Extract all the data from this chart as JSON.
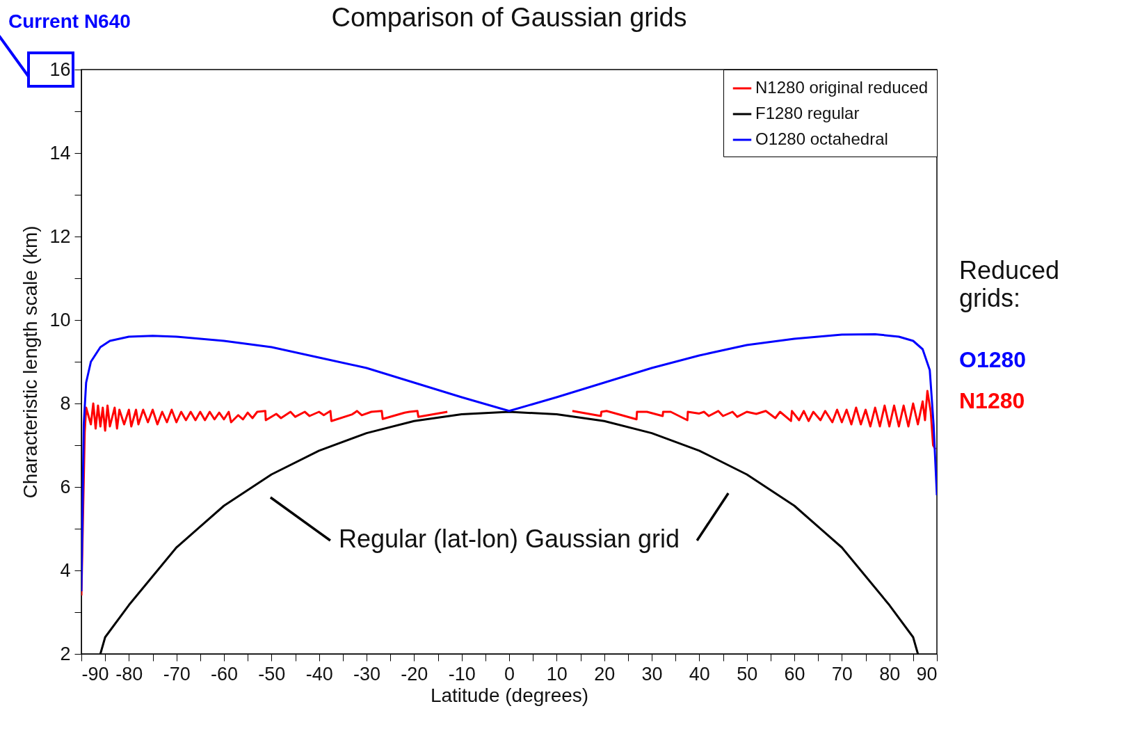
{
  "chart_data": {
    "type": "line",
    "title": "Comparison of Gaussian grids",
    "xlabel": "Latitude (degrees)",
    "ylabel": "Characteristic length scale (km)",
    "xlim": [
      -90,
      90
    ],
    "ylim": [
      2,
      16
    ],
    "xticks": [
      -90,
      {
        "value": -85,
        "label": null
      },
      -80,
      {
        "value": -75,
        "label": null
      },
      -70,
      {
        "value": -65,
        "label": null
      },
      -60,
      {
        "value": -55,
        "label": null
      },
      -50,
      {
        "value": -45,
        "label": null
      },
      -40,
      {
        "value": -35,
        "label": null
      },
      -30,
      {
        "value": -25,
        "label": null
      },
      -20,
      {
        "value": -15,
        "label": null
      },
      -10,
      {
        "value": -5,
        "label": null
      },
      0,
      {
        "value": 5,
        "label": null
      },
      10,
      {
        "value": 15,
        "label": null
      },
      20,
      {
        "value": 25,
        "label": null
      },
      30,
      {
        "value": 35,
        "label": null
      },
      40,
      {
        "value": 45,
        "label": null
      },
      50,
      {
        "value": 55,
        "label": null
      },
      60,
      {
        "value": 65,
        "label": null
      },
      70,
      {
        "value": 75,
        "label": null
      },
      80,
      {
        "value": 85,
        "label": null
      },
      90
    ],
    "yticks": [
      2,
      {
        "value": 3,
        "label": null
      },
      4,
      {
        "value": 5,
        "label": null
      },
      6,
      {
        "value": 7,
        "label": null
      },
      8,
      {
        "value": 9,
        "label": null
      },
      10,
      {
        "value": 11,
        "label": null
      },
      12,
      {
        "value": 13,
        "label": null
      },
      14,
      {
        "value": 15,
        "label": null
      },
      16
    ],
    "grid": false,
    "legend": "top right",
    "line_style": "solid",
    "marker": "none",
    "series": [
      {
        "name": "N1280 original reduced",
        "color": "#ff0000",
        "x": [
          -90,
          -89.3,
          -89,
          -88,
          -87.5,
          -87,
          -86.5,
          -86,
          -85.5,
          -85,
          -84.5,
          -84,
          -83,
          -82.5,
          -82,
          -81,
          -80,
          -79.5,
          -78.5,
          -78,
          -77,
          -76,
          -75,
          -74,
          -73,
          -72,
          -71,
          -70,
          -69,
          -68,
          -67,
          -66,
          -65,
          -64,
          -63,
          -62,
          -61,
          -60,
          -59,
          -58.5,
          -57,
          -56,
          -55,
          -54,
          -53,
          -51.3,
          -51.2,
          -49,
          -48,
          -46,
          -45,
          -43,
          -42,
          -40,
          -39,
          -37.6,
          -37.4,
          -33,
          -32,
          -31,
          -29,
          -26.8,
          -26.6,
          -22,
          -21,
          -19.3,
          -19.1,
          -13,
          0,
          13.3,
          19.3,
          19.4,
          20.5,
          26.8,
          26.9,
          29,
          32.3,
          32.4,
          34,
          37.5,
          37.6,
          40,
          41,
          42,
          44,
          45,
          47,
          48,
          50,
          52,
          54,
          56,
          57,
          59.3,
          59.5,
          61,
          62,
          63,
          64,
          65.5,
          66.5,
          68,
          69,
          70,
          71,
          72,
          73,
          74,
          75,
          76,
          77,
          78,
          79,
          80,
          81,
          82,
          83,
          84,
          85,
          86,
          87,
          87.5,
          88,
          88.7,
          89.2,
          89.7
        ],
        "values": [
          3.4,
          7.3,
          7.9,
          7.5,
          8.0,
          7.4,
          7.95,
          7.45,
          7.9,
          7.35,
          7.95,
          7.45,
          7.9,
          7.4,
          7.85,
          7.5,
          7.85,
          7.45,
          7.85,
          7.5,
          7.85,
          7.55,
          7.85,
          7.5,
          7.8,
          7.55,
          7.85,
          7.55,
          7.8,
          7.6,
          7.8,
          7.6,
          7.8,
          7.6,
          7.8,
          7.62,
          7.78,
          7.62,
          7.8,
          7.55,
          7.72,
          7.62,
          7.78,
          7.65,
          7.8,
          7.82,
          7.6,
          7.75,
          7.65,
          7.8,
          7.68,
          7.8,
          7.7,
          7.8,
          7.72,
          7.82,
          7.58,
          7.74,
          7.82,
          7.72,
          7.8,
          7.82,
          7.63,
          7.78,
          7.8,
          7.82,
          7.68,
          7.8,
          null,
          7.82,
          7.7,
          7.8,
          7.82,
          7.62,
          7.8,
          7.8,
          7.7,
          7.8,
          7.8,
          7.6,
          7.8,
          7.76,
          7.8,
          7.7,
          7.82,
          7.7,
          7.8,
          7.68,
          7.8,
          7.75,
          7.82,
          7.65,
          7.8,
          7.58,
          7.82,
          7.6,
          7.82,
          7.58,
          7.8,
          7.6,
          7.82,
          7.55,
          7.85,
          7.55,
          7.85,
          7.5,
          7.9,
          7.5,
          7.85,
          7.45,
          7.9,
          7.45,
          7.95,
          7.45,
          7.95,
          7.45,
          7.95,
          7.45,
          8.0,
          7.5,
          8.05,
          7.6,
          8.3,
          7.8,
          7.0,
          6.9
        ]
      },
      {
        "name": "F1280 regular",
        "color": "#000000",
        "x": [
          -86,
          -85,
          -80,
          -70,
          -60,
          -50,
          -40,
          -30,
          -20,
          -10,
          0,
          10,
          20,
          30,
          40,
          50,
          60,
          70,
          80,
          85,
          86
        ],
        "values": [
          2.0,
          2.4,
          3.17,
          4.55,
          5.55,
          6.3,
          6.87,
          7.29,
          7.58,
          7.74,
          7.8,
          7.74,
          7.58,
          7.29,
          6.87,
          6.3,
          5.55,
          4.55,
          3.17,
          2.4,
          2.0
        ]
      },
      {
        "name": "O1280 octahedral",
        "color": "#0000ff",
        "x": [
          -90,
          -89.5,
          -89,
          -88,
          -86,
          -84,
          -80,
          -75,
          -70,
          -60,
          -50,
          -40,
          -30,
          -20,
          -10,
          0,
          10,
          20,
          30,
          40,
          50,
          60,
          70,
          77,
          82,
          85,
          87,
          88.5,
          89.3,
          90
        ],
        "values": [
          3.5,
          7.5,
          8.5,
          9.0,
          9.35,
          9.5,
          9.6,
          9.62,
          9.6,
          9.5,
          9.35,
          9.1,
          8.85,
          8.5,
          8.15,
          7.82,
          8.15,
          8.5,
          8.85,
          9.15,
          9.4,
          9.55,
          9.65,
          9.66,
          9.6,
          9.5,
          9.3,
          8.8,
          7.5,
          5.8
        ]
      }
    ],
    "annotations": [
      "Current N640",
      "Regular (lat-lon) Gaussian grid",
      "Reduced grids:",
      "O1280",
      "N1280"
    ]
  }
}
